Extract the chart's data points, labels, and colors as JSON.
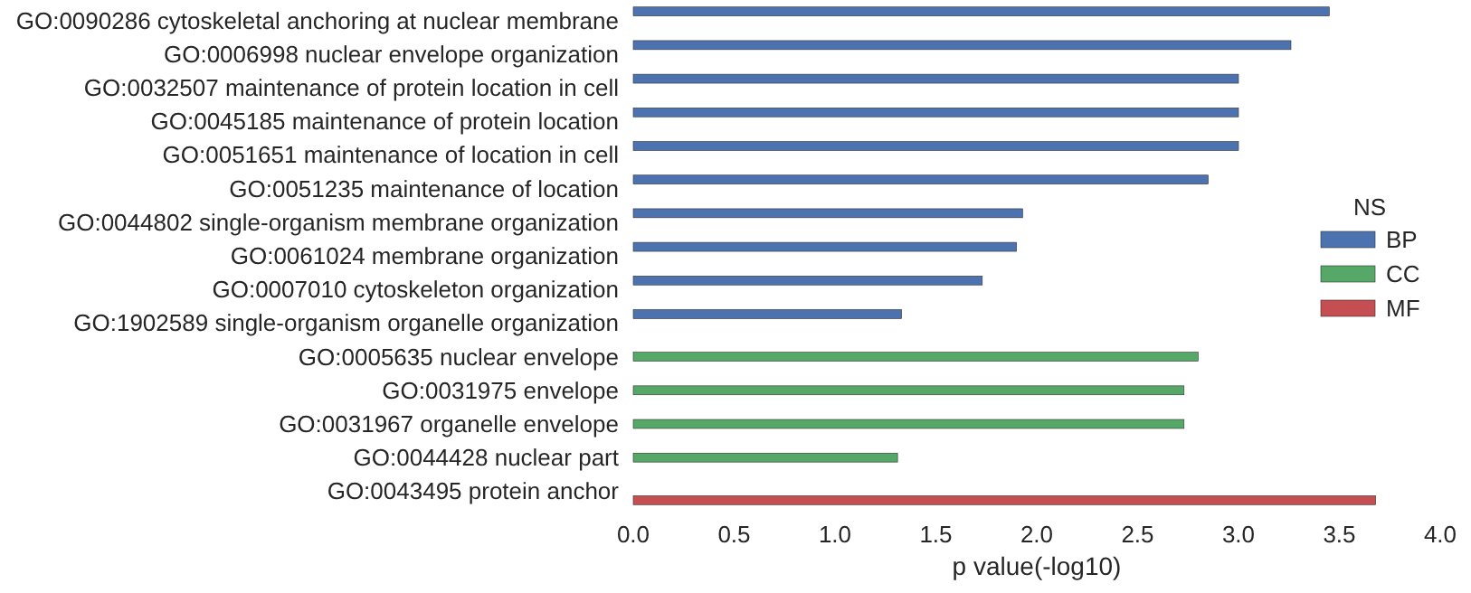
{
  "chart_data": {
    "type": "bar",
    "orientation": "horizontal",
    "xlabel": "p value(-log10)",
    "legend_title": "NS",
    "legend": "right",
    "categories": [
      "GO:0090286 cytoskeletal anchoring at nuclear membrane",
      "GO:0006998 nuclear envelope organization",
      "GO:0032507 maintenance of protein location in cell",
      "GO:0045185 maintenance of protein location",
      "GO:0051651 maintenance of location in cell",
      "GO:0051235 maintenance of location",
      "GO:0044802 single-organism membrane organization",
      "GO:0061024 membrane organization",
      "GO:0007010 cytoskeleton organization",
      "GO:1902589 single-organism organelle organization",
      "GO:0005635 nuclear envelope",
      "GO:0031975 envelope",
      "GO:0031967 organelle envelope",
      "GO:0044428 nuclear part",
      "GO:0043495 protein anchor"
    ],
    "series": [
      {
        "name": "BP",
        "color": "#4c72b0",
        "values": [
          3.45,
          3.26,
          3.0,
          3.0,
          3.0,
          2.85,
          1.93,
          1.9,
          1.73,
          1.33,
          null,
          null,
          null,
          null,
          null
        ]
      },
      {
        "name": "CC",
        "color": "#55a868",
        "values": [
          null,
          null,
          null,
          null,
          null,
          null,
          null,
          null,
          null,
          null,
          2.8,
          2.73,
          2.73,
          1.31,
          null
        ]
      },
      {
        "name": "MF",
        "color": "#c44e52",
        "values": [
          null,
          null,
          null,
          null,
          null,
          null,
          null,
          null,
          null,
          null,
          null,
          null,
          null,
          null,
          3.68
        ]
      }
    ],
    "xlim": [
      0,
      4
    ],
    "xticks": [
      {
        "value": 0,
        "label": "0.0"
      },
      {
        "value": 0.5,
        "label": "0.5"
      },
      {
        "value": 1,
        "label": "1.0"
      },
      {
        "value": 1.5,
        "label": "1.5"
      },
      {
        "value": 2,
        "label": "2.0"
      },
      {
        "value": 2.5,
        "label": "2.5"
      },
      {
        "value": 3,
        "label": "3.0"
      },
      {
        "value": 3.5,
        "label": "3.5"
      },
      {
        "value": 4,
        "label": "4.0"
      }
    ]
  }
}
